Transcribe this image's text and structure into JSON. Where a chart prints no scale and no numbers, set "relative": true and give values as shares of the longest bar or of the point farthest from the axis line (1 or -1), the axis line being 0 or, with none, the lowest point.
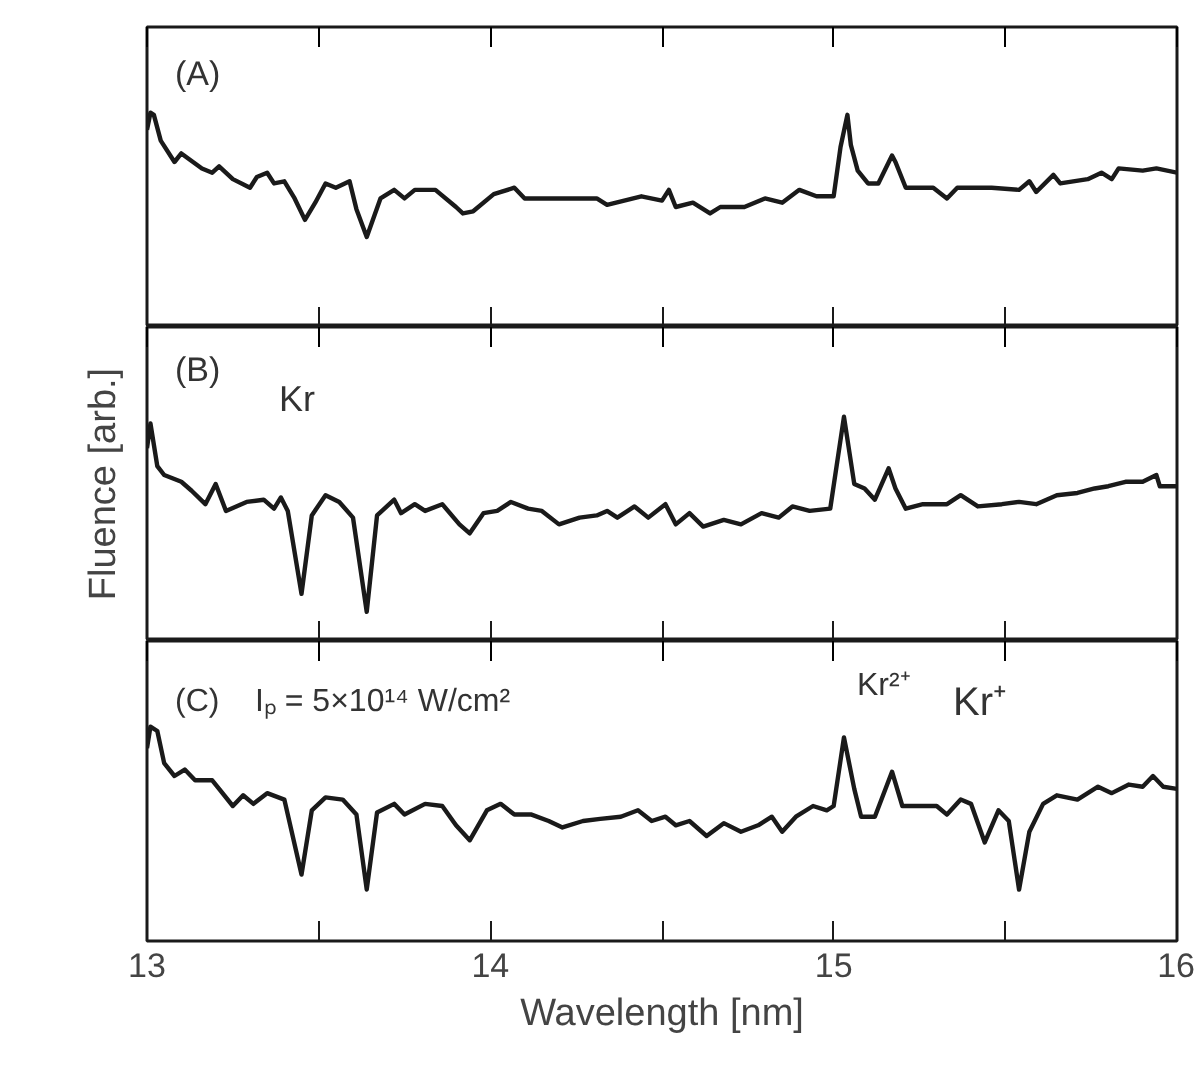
{
  "chart_data": [
    {
      "type": "line",
      "relative": true,
      "xlim": [
        13,
        16
      ],
      "xticks": [
        13,
        {
          "value": 13.5,
          "label": null
        },
        14,
        {
          "value": 14.5,
          "label": null
        },
        15,
        {
          "value": 15.5,
          "label": null
        },
        16
      ],
      "tick_labels": false,
      "grid": false,
      "annotations": [
        "(A)"
      ],
      "series": [
        {
          "color": "#1a1a1a",
          "x": [
            13.0,
            13.01,
            13.02,
            13.04,
            13.08,
            13.1,
            13.16,
            13.19,
            13.21,
            13.25,
            13.3,
            13.32,
            13.35,
            13.37,
            13.4,
            13.43,
            13.46,
            13.49,
            13.52,
            13.55,
            13.59,
            13.61,
            13.64,
            13.68,
            13.72,
            13.75,
            13.78,
            13.84,
            13.9,
            13.92,
            13.95,
            14.01,
            14.07,
            14.1,
            14.17,
            14.24,
            14.31,
            14.34,
            14.44,
            14.5,
            14.52,
            14.54,
            14.59,
            14.64,
            14.67,
            14.74,
            14.8,
            14.85,
            14.9,
            14.95,
            15.0,
            15.02,
            15.04,
            15.05,
            15.07,
            15.1,
            15.13,
            15.17,
            15.18,
            15.21,
            15.29,
            15.33,
            15.36,
            15.46,
            15.54,
            15.57,
            15.59,
            15.64,
            15.66,
            15.74,
            15.78,
            15.81,
            15.83,
            15.9,
            15.94,
            16.0
          ],
          "values": [
            0.92,
            1.0,
            0.99,
            0.87,
            0.77,
            0.81,
            0.74,
            0.72,
            0.75,
            0.69,
            0.65,
            0.7,
            0.72,
            0.67,
            0.68,
            0.6,
            0.5,
            0.58,
            0.67,
            0.65,
            0.68,
            0.55,
            0.42,
            0.6,
            0.64,
            0.6,
            0.64,
            0.64,
            0.56,
            0.53,
            0.54,
            0.62,
            0.65,
            0.6,
            0.6,
            0.6,
            0.6,
            0.57,
            0.61,
            0.59,
            0.64,
            0.56,
            0.58,
            0.53,
            0.56,
            0.56,
            0.6,
            0.58,
            0.64,
            0.61,
            0.61,
            0.84,
            0.99,
            0.85,
            0.73,
            0.67,
            0.67,
            0.8,
            0.77,
            0.65,
            0.65,
            0.6,
            0.65,
            0.65,
            0.64,
            0.68,
            0.63,
            0.71,
            0.67,
            0.69,
            0.72,
            0.69,
            0.74,
            0.73,
            0.74,
            0.72
          ]
        }
      ]
    },
    {
      "type": "line",
      "relative": true,
      "xlim": [
        13,
        16
      ],
      "xticks": [
        13,
        {
          "value": 13.5,
          "label": null
        },
        14,
        {
          "value": 14.5,
          "label": null
        },
        15,
        {
          "value": 15.5,
          "label": null
        },
        16
      ],
      "tick_labels": false,
      "grid": false,
      "ylabel": "Fluence [arb.]",
      "annotations": [
        "(B)",
        "Kr"
      ],
      "series": [
        {
          "color": "#1a1a1a",
          "x": [
            13.0,
            13.01,
            13.03,
            13.05,
            13.1,
            13.13,
            13.17,
            13.2,
            13.23,
            13.26,
            13.29,
            13.34,
            13.37,
            13.39,
            13.41,
            13.45,
            13.48,
            13.52,
            13.56,
            13.6,
            13.64,
            13.67,
            13.72,
            13.74,
            13.78,
            13.81,
            13.86,
            13.91,
            13.94,
            13.98,
            14.02,
            14.06,
            14.11,
            14.15,
            14.2,
            14.26,
            14.31,
            14.34,
            14.37,
            14.42,
            14.46,
            14.51,
            14.54,
            14.58,
            14.62,
            14.68,
            14.73,
            14.79,
            14.84,
            14.88,
            14.93,
            14.99,
            15.03,
            15.06,
            15.09,
            15.12,
            15.16,
            15.18,
            15.21,
            15.26,
            15.33,
            15.37,
            15.42,
            15.49,
            15.54,
            15.59,
            15.65,
            15.71,
            15.76,
            15.8,
            15.85,
            15.9,
            15.94,
            15.95,
            16.0
          ],
          "values": [
            0.86,
            0.97,
            0.78,
            0.74,
            0.71,
            0.67,
            0.61,
            0.7,
            0.58,
            0.6,
            0.62,
            0.63,
            0.59,
            0.64,
            0.58,
            0.21,
            0.56,
            0.65,
            0.62,
            0.55,
            0.13,
            0.56,
            0.63,
            0.57,
            0.61,
            0.58,
            0.61,
            0.52,
            0.48,
            0.57,
            0.58,
            0.62,
            0.59,
            0.58,
            0.52,
            0.55,
            0.56,
            0.58,
            0.55,
            0.6,
            0.55,
            0.61,
            0.52,
            0.57,
            0.51,
            0.54,
            0.52,
            0.57,
            0.55,
            0.6,
            0.58,
            0.59,
            1.0,
            0.7,
            0.68,
            0.63,
            0.77,
            0.68,
            0.59,
            0.61,
            0.61,
            0.65,
            0.6,
            0.61,
            0.62,
            0.61,
            0.65,
            0.66,
            0.68,
            0.69,
            0.71,
            0.71,
            0.74,
            0.69,
            0.69
          ]
        }
      ]
    },
    {
      "type": "line",
      "relative": true,
      "xlabel": "Wavelength [nm]",
      "xlim": [
        13,
        16
      ],
      "xticks": [
        13,
        {
          "value": 13.5,
          "label": null
        },
        14,
        {
          "value": 14.5,
          "label": null
        },
        15,
        {
          "value": 15.5,
          "label": null
        },
        16
      ],
      "tick_labels": "x",
      "grid": false,
      "annotations": [
        "(C)",
        "Iₚ = 5×10¹⁴ W/cm²",
        "Kr²⁺",
        "Kr⁺"
      ],
      "series": [
        {
          "color": "#1a1a1a",
          "x": [
            13.0,
            13.01,
            13.03,
            13.05,
            13.08,
            13.11,
            13.14,
            13.19,
            13.21,
            13.25,
            13.28,
            13.31,
            13.35,
            13.4,
            13.45,
            13.48,
            13.52,
            13.57,
            13.61,
            13.64,
            13.67,
            13.72,
            13.75,
            13.81,
            13.86,
            13.9,
            13.94,
            13.99,
            14.03,
            14.07,
            14.12,
            14.17,
            14.21,
            14.27,
            14.32,
            14.38,
            14.43,
            14.47,
            14.51,
            14.54,
            14.58,
            14.63,
            14.68,
            14.73,
            14.78,
            14.82,
            14.85,
            14.89,
            14.94,
            14.98,
            15.0,
            15.03,
            15.06,
            15.08,
            15.12,
            15.17,
            15.2,
            15.24,
            15.3,
            15.33,
            15.37,
            15.4,
            15.44,
            15.48,
            15.51,
            15.54,
            15.57,
            15.61,
            15.65,
            15.71,
            15.77,
            15.81,
            15.86,
            15.9,
            15.93,
            15.96,
            16.0
          ],
          "values": [
            0.9,
            1.0,
            0.98,
            0.83,
            0.77,
            0.8,
            0.75,
            0.75,
            0.71,
            0.63,
            0.68,
            0.64,
            0.69,
            0.66,
            0.31,
            0.61,
            0.67,
            0.66,
            0.59,
            0.24,
            0.6,
            0.64,
            0.59,
            0.64,
            0.63,
            0.54,
            0.47,
            0.61,
            0.64,
            0.59,
            0.59,
            0.56,
            0.53,
            0.56,
            0.57,
            0.58,
            0.61,
            0.56,
            0.58,
            0.54,
            0.56,
            0.49,
            0.55,
            0.51,
            0.54,
            0.58,
            0.51,
            0.58,
            0.63,
            0.61,
            0.63,
            0.95,
            0.71,
            0.58,
            0.58,
            0.79,
            0.63,
            0.63,
            0.63,
            0.59,
            0.66,
            0.64,
            0.46,
            0.61,
            0.56,
            0.24,
            0.51,
            0.64,
            0.68,
            0.66,
            0.72,
            0.69,
            0.73,
            0.72,
            0.77,
            0.72,
            0.71
          ]
        }
      ]
    }
  ]
}
